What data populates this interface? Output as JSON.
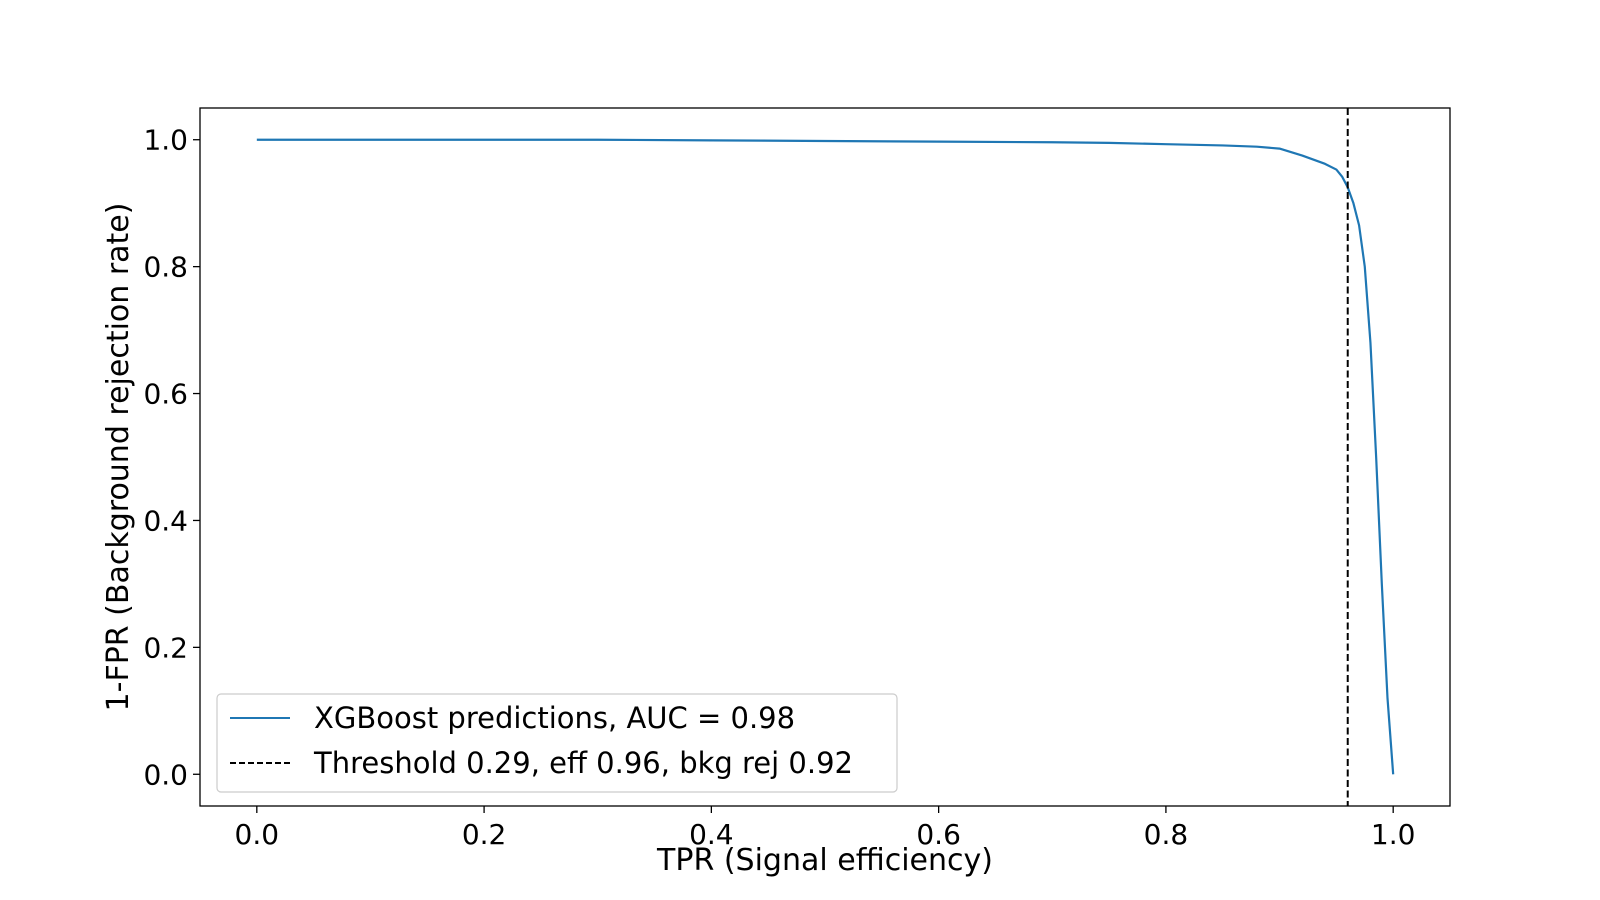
{
  "chart_data": {
    "type": "line",
    "title": "",
    "xlabel": "TPR (Signal efficiency)",
    "ylabel": "1-FPR (Background rejection rate)",
    "xlim": [
      -0.05,
      1.05
    ],
    "ylim": [
      -0.05,
      1.05
    ],
    "xticks": [
      0.0,
      0.2,
      0.4,
      0.6,
      0.8,
      1.0
    ],
    "xtick_labels": [
      "0.0",
      "0.2",
      "0.4",
      "0.6",
      "0.8",
      "1.0"
    ],
    "yticks": [
      0.0,
      0.2,
      0.4,
      0.6,
      0.8,
      1.0
    ],
    "ytick_labels": [
      "0.0",
      "0.2",
      "0.4",
      "0.6",
      "0.8",
      "1.0"
    ],
    "grid": false,
    "legend_position": "lower-left",
    "series": [
      {
        "name": "XGBoost predictions, AUC = 0.98",
        "color": "#1f77b4",
        "style": "solid",
        "x": [
          0.0,
          0.1,
          0.2,
          0.3,
          0.4,
          0.5,
          0.6,
          0.7,
          0.75,
          0.8,
          0.85,
          0.88,
          0.9,
          0.92,
          0.94,
          0.95,
          0.955,
          0.96,
          0.965,
          0.97,
          0.975,
          0.98,
          0.985,
          0.99,
          0.995,
          1.0
        ],
        "y": [
          1.0,
          1.0,
          1.0,
          1.0,
          0.999,
          0.998,
          0.997,
          0.996,
          0.995,
          0.993,
          0.991,
          0.989,
          0.986,
          0.975,
          0.962,
          0.953,
          0.942,
          0.925,
          0.9,
          0.865,
          0.8,
          0.68,
          0.5,
          0.3,
          0.12,
          0.0
        ]
      },
      {
        "name": "Threshold 0.29, eff 0.96, bkg rej 0.92",
        "color": "#000000",
        "style": "dashed",
        "vline_x": 0.96
      }
    ]
  }
}
